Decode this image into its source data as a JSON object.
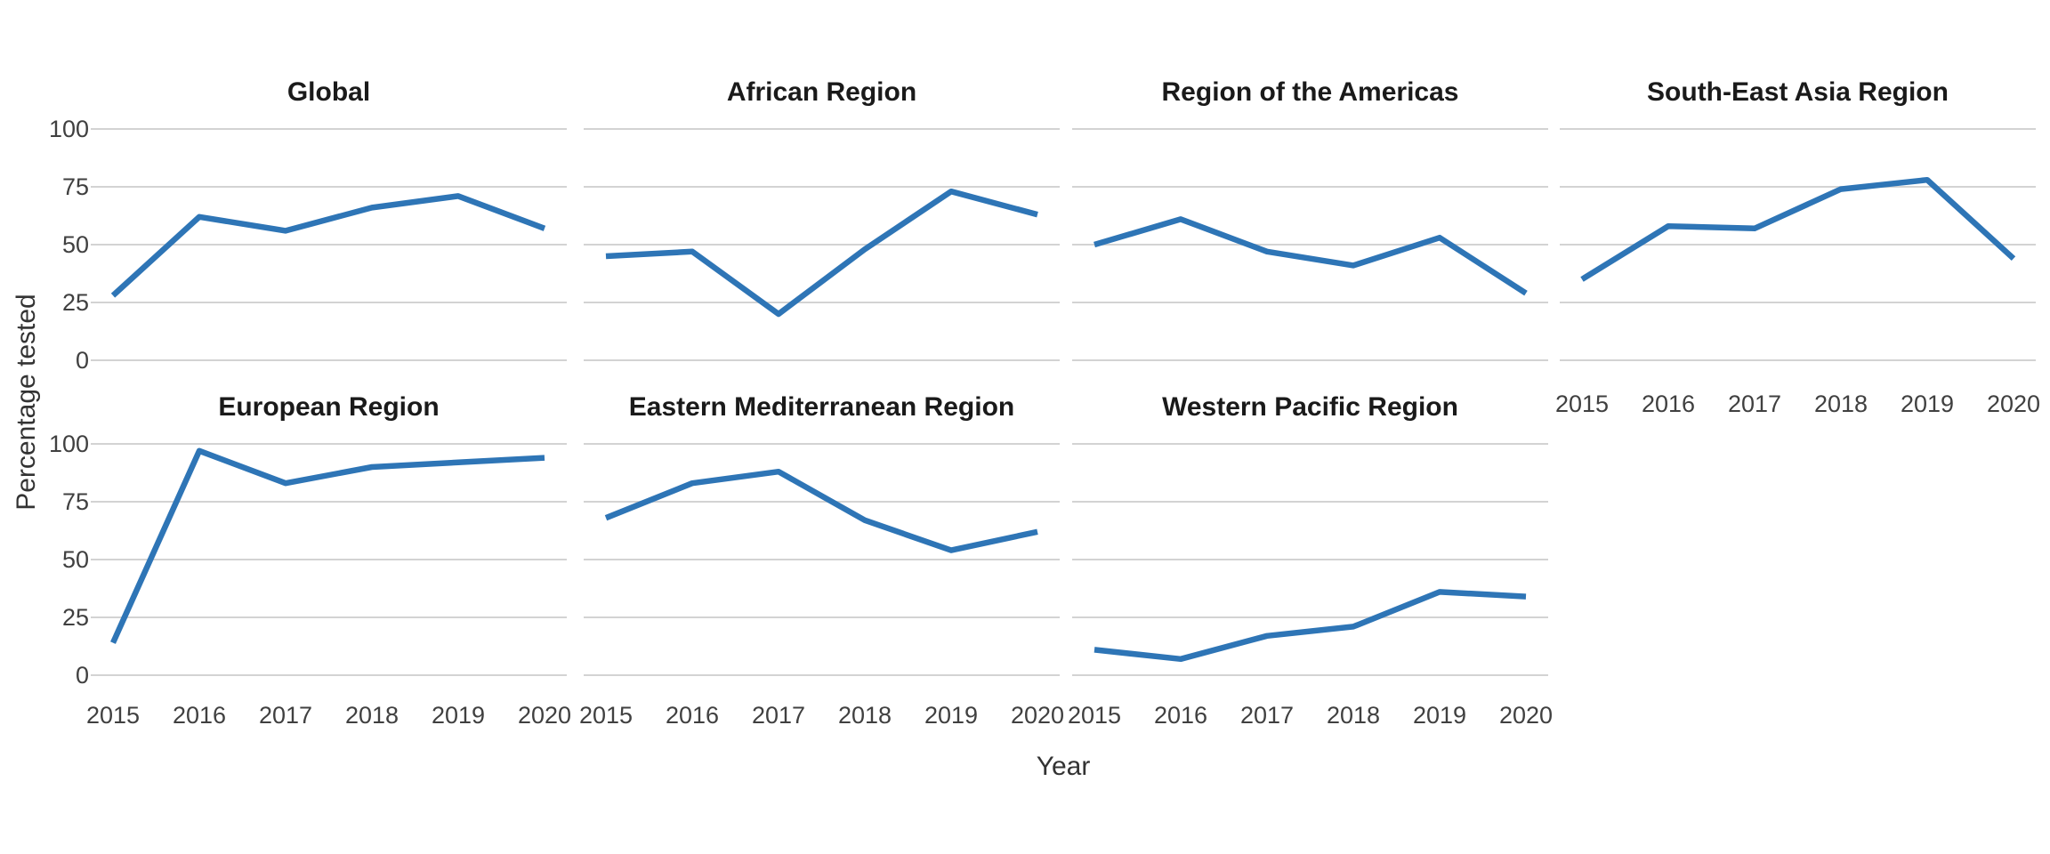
{
  "figure": {
    "x_axis_title": "Year",
    "y_axis_title": "Percentage tested",
    "colors": {
      "line": "#2E75B6",
      "gridline": "#D3D3D3",
      "panel_title_text": "#1A1A1A",
      "tick_text": "#404040",
      "axis_title_text": "#333333",
      "background": "#FFFFFF"
    }
  },
  "chart_data": {
    "type": "line",
    "x": [
      2015,
      2016,
      2017,
      2018,
      2019,
      2020
    ],
    "xlabel": "Year",
    "ylabel": "Percentage tested",
    "ylim": [
      0,
      100
    ],
    "y_ticks": [
      100,
      75,
      50,
      25,
      0
    ],
    "grid": "horizontal-only",
    "legend": "none",
    "layout": "facet-grid 2 rows x 4 cols (7 panels)",
    "facets": [
      {
        "title": "Global",
        "row": 0,
        "col": 0,
        "show_x_labels": false,
        "values": [
          28,
          62,
          56,
          66,
          71,
          57
        ]
      },
      {
        "title": "African Region",
        "row": 0,
        "col": 1,
        "show_x_labels": false,
        "values": [
          45,
          47,
          20,
          48,
          73,
          63
        ]
      },
      {
        "title": "Region of the Americas",
        "row": 0,
        "col": 2,
        "show_x_labels": false,
        "values": [
          50,
          61,
          47,
          41,
          53,
          29
        ]
      },
      {
        "title": "South-East Asia Region",
        "row": 0,
        "col": 3,
        "show_x_labels": true,
        "values": [
          35,
          58,
          57,
          74,
          78,
          44
        ]
      },
      {
        "title": "European Region",
        "row": 1,
        "col": 0,
        "show_x_labels": true,
        "values": [
          14,
          97,
          83,
          90,
          92,
          94
        ]
      },
      {
        "title": "Eastern Mediterranean Region",
        "row": 1,
        "col": 1,
        "show_x_labels": true,
        "values": [
          68,
          83,
          88,
          67,
          54,
          62
        ]
      },
      {
        "title": "Western Pacific Region",
        "row": 1,
        "col": 2,
        "show_x_labels": true,
        "values": [
          11,
          7,
          17,
          21,
          36,
          34
        ]
      }
    ]
  }
}
